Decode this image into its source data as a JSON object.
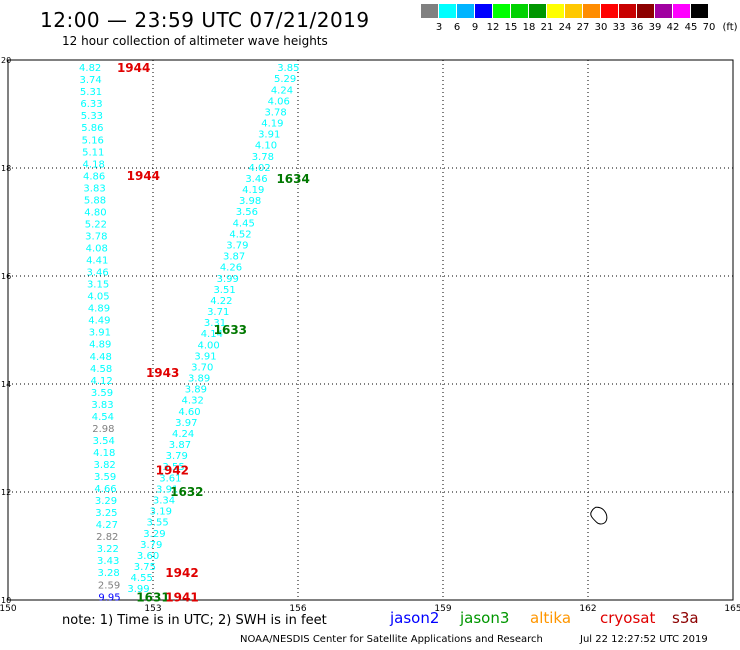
{
  "title": "12:00 — 23:59 UTC 07/21/2019",
  "subtitle": "12 hour collection of altimeter wave heights",
  "legend": {
    "unit": "(ft)",
    "bins": [
      {
        "label": "3",
        "color": "#808080"
      },
      {
        "label": "6",
        "color": "#00ffff"
      },
      {
        "label": "9",
        "color": "#00b4ff"
      },
      {
        "label": "12",
        "color": "#0000ff"
      },
      {
        "label": "15",
        "color": "#00ff00"
      },
      {
        "label": "18",
        "color": "#00d200"
      },
      {
        "label": "21",
        "color": "#009600"
      },
      {
        "label": "24",
        "color": "#ffff00"
      },
      {
        "label": "27",
        "color": "#ffc800"
      },
      {
        "label": "30",
        "color": "#ff8c00"
      },
      {
        "label": "33",
        "color": "#ff0000"
      },
      {
        "label": "36",
        "color": "#c80000"
      },
      {
        "label": "39",
        "color": "#8c0000"
      },
      {
        "label": "42",
        "color": "#a000a0"
      },
      {
        "label": "45",
        "color": "#ff00ff"
      },
      {
        "label": "70",
        "color": "#000000"
      }
    ]
  },
  "map": {
    "lon_ticks": [
      "150",
      "153",
      "156",
      "159",
      "162",
      "165"
    ],
    "lat_ticks": [
      "10",
      "12",
      "14",
      "16",
      "18",
      "20"
    ],
    "lon_range": [
      150,
      165
    ],
    "lat_range": [
      10,
      20
    ]
  },
  "track_right": {
    "color": "#00ffff",
    "values": [
      "3.85",
      "5.29",
      "4.24",
      "4.06",
      "3.78",
      "4.19",
      "3.91",
      "4.10",
      "3.78",
      "4.02",
      "3.46",
      "4.19",
      "3.98",
      "3.56",
      "4.45",
      "4.52",
      "3.79",
      "3.87",
      "4.26",
      "3.99",
      "3.51",
      "4.22",
      "3.71",
      "3.31",
      "4.14",
      "4.00",
      "3.91",
      "3.70",
      "3.89",
      "3.89",
      "4.32",
      "4.60",
      "3.97",
      "4.24",
      "3.87",
      "3.79",
      "3.55",
      "3.61",
      "3.91",
      "3.34",
      "3.19",
      "3.55",
      "3.29",
      "3.79",
      "3.60",
      "3.75",
      "4.55",
      "3.99"
    ]
  },
  "track_left": {
    "color": "#00ffff",
    "values": [
      "4.82",
      "3.74",
      "5.31",
      "6.33",
      "5.33",
      "5.86",
      "5.16",
      "5.11",
      "4.18",
      "4.86",
      "3.83",
      "5.88",
      "4.80",
      "5.22",
      "3.78",
      "4.08",
      "4.41",
      "3.46",
      "3.15",
      "4.05",
      "4.89",
      "4.49",
      "3.91",
      "4.89",
      "4.48",
      "4.58",
      "4.12",
      "3.59",
      "3.83",
      "4.54",
      "2.98",
      "3.54",
      "4.18",
      "3.82",
      "3.59",
      "4.66",
      "3.29",
      "3.25",
      "4.27",
      "2.82",
      "3.22",
      "3.43",
      "3.28",
      "2.59",
      "9.95"
    ]
  },
  "time_labels": [
    {
      "text": "1944",
      "color": "#e00000"
    },
    {
      "text": "1944",
      "color": "#e00000"
    },
    {
      "text": "1634",
      "color": "#007800"
    },
    {
      "text": "1633",
      "color": "#007800"
    },
    {
      "text": "1943",
      "color": "#e00000"
    },
    {
      "text": "1942",
      "color": "#e00000"
    },
    {
      "text": "1632",
      "color": "#007800"
    },
    {
      "text": "1942",
      "color": "#e00000"
    },
    {
      "text": "1631",
      "color": "#007800"
    },
    {
      "text": "1941",
      "color": "#e00000"
    }
  ],
  "note": "note:  1) Time is in UTC;  2) SWH is in feet",
  "satellites": [
    {
      "name": "jason2",
      "color": "#0000ff"
    },
    {
      "name": "jason3",
      "color": "#009600"
    },
    {
      "name": "altika",
      "color": "#ff9600"
    },
    {
      "name": "cryosat",
      "color": "#e00000"
    },
    {
      "name": "s3a",
      "color": "#8c0000"
    }
  ],
  "credit": "NOAA/NESDIS Center for Satellite Applications and Research",
  "timestamp": "Jul 22 12:27:52 UTC 2019"
}
